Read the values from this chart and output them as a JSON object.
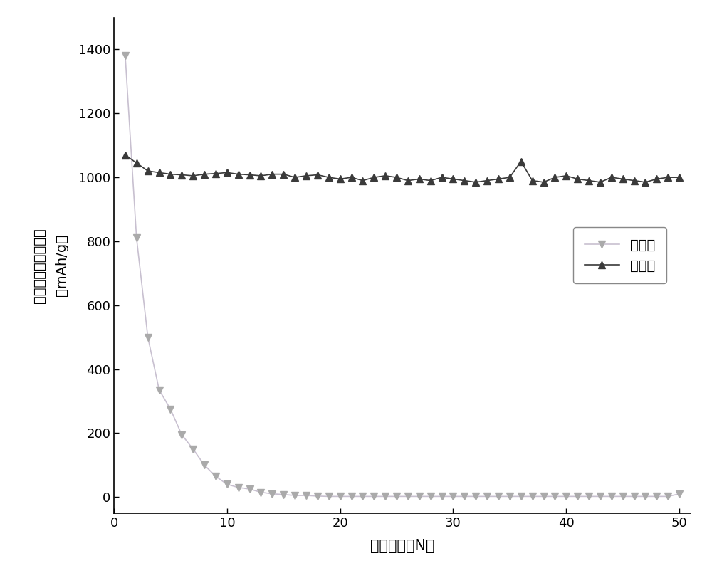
{
  "xlabel": "循环次数（N）",
  "ylabel_line1": "半电池的放电比容量",
  "ylabel_line2": "（mAh/g）",
  "xlim": [
    0,
    51
  ],
  "ylim": [
    -50,
    1500
  ],
  "yticks": [
    0,
    200,
    400,
    600,
    800,
    1000,
    1200,
    1400
  ],
  "xticks": [
    0,
    10,
    20,
    30,
    40,
    50
  ],
  "legend_labels": [
    "实施例",
    "对比例"
  ],
  "series1_color": "#3a3a3a",
  "series2_color": "#aaaaaa",
  "series2_line_color": "#c8c0d0",
  "background_color": "#ffffff",
  "series1_x": [
    1,
    2,
    3,
    4,
    5,
    6,
    7,
    8,
    9,
    10,
    11,
    12,
    13,
    14,
    15,
    16,
    17,
    18,
    19,
    20,
    21,
    22,
    23,
    24,
    25,
    26,
    27,
    28,
    29,
    30,
    31,
    32,
    33,
    34,
    35,
    36,
    37,
    38,
    39,
    40,
    41,
    42,
    43,
    44,
    45,
    46,
    47,
    48,
    49,
    50
  ],
  "series1_y": [
    1070,
    1045,
    1020,
    1015,
    1010,
    1008,
    1005,
    1010,
    1012,
    1015,
    1010,
    1008,
    1005,
    1010,
    1010,
    1000,
    1005,
    1008,
    1000,
    995,
    1000,
    990,
    1000,
    1005,
    1000,
    990,
    995,
    990,
    1000,
    995,
    990,
    985,
    990,
    995,
    1000,
    1050,
    990,
    985,
    1000,
    1005,
    995,
    990,
    985,
    1000,
    995,
    990,
    985,
    995,
    1000,
    1000
  ],
  "series2_x": [
    1,
    2,
    3,
    4,
    5,
    6,
    7,
    8,
    9,
    10,
    11,
    12,
    13,
    14,
    15,
    16,
    17,
    18,
    19,
    20,
    21,
    22,
    23,
    24,
    25,
    26,
    27,
    28,
    29,
    30,
    31,
    32,
    33,
    34,
    35,
    36,
    37,
    38,
    39,
    40,
    41,
    42,
    43,
    44,
    45,
    46,
    47,
    48,
    49,
    50
  ],
  "series2_y": [
    1380,
    810,
    500,
    335,
    275,
    195,
    150,
    100,
    65,
    40,
    30,
    25,
    15,
    10,
    8,
    5,
    5,
    3,
    2,
    2,
    2,
    2,
    2,
    2,
    2,
    2,
    2,
    2,
    2,
    2,
    2,
    2,
    2,
    2,
    2,
    2,
    2,
    2,
    2,
    2,
    2,
    2,
    2,
    2,
    2,
    2,
    2,
    2,
    2,
    10
  ],
  "marker_size": 7,
  "line_width": 1.2
}
